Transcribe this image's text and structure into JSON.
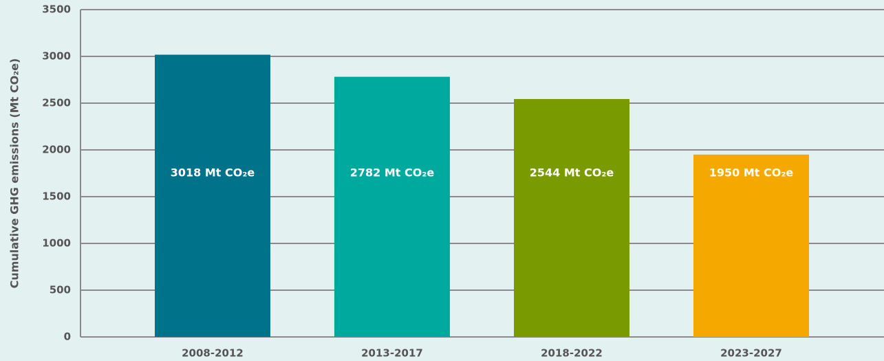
{
  "chart_data": {
    "type": "bar",
    "y_label": "Cumulative GHG emissions (Mt CO₂e)",
    "categories": [
      "2008-2012",
      "2013-2017",
      "2018-2022",
      "2023-2027"
    ],
    "values": [
      3018,
      2782,
      2544,
      1950
    ],
    "value_labels": [
      "3018 Mt CO₂e",
      "2782 Mt CO₂e",
      "2544 Mt CO₂e",
      "1950 Mt CO₂e"
    ],
    "colors": [
      "#00738a",
      "#00a99d",
      "#7a9a01",
      "#f5a800"
    ],
    "ylim": [
      0,
      3500
    ],
    "yticks": [
      0,
      500,
      1000,
      1500,
      2000,
      2500,
      3000,
      3500
    ],
    "grid": true
  }
}
